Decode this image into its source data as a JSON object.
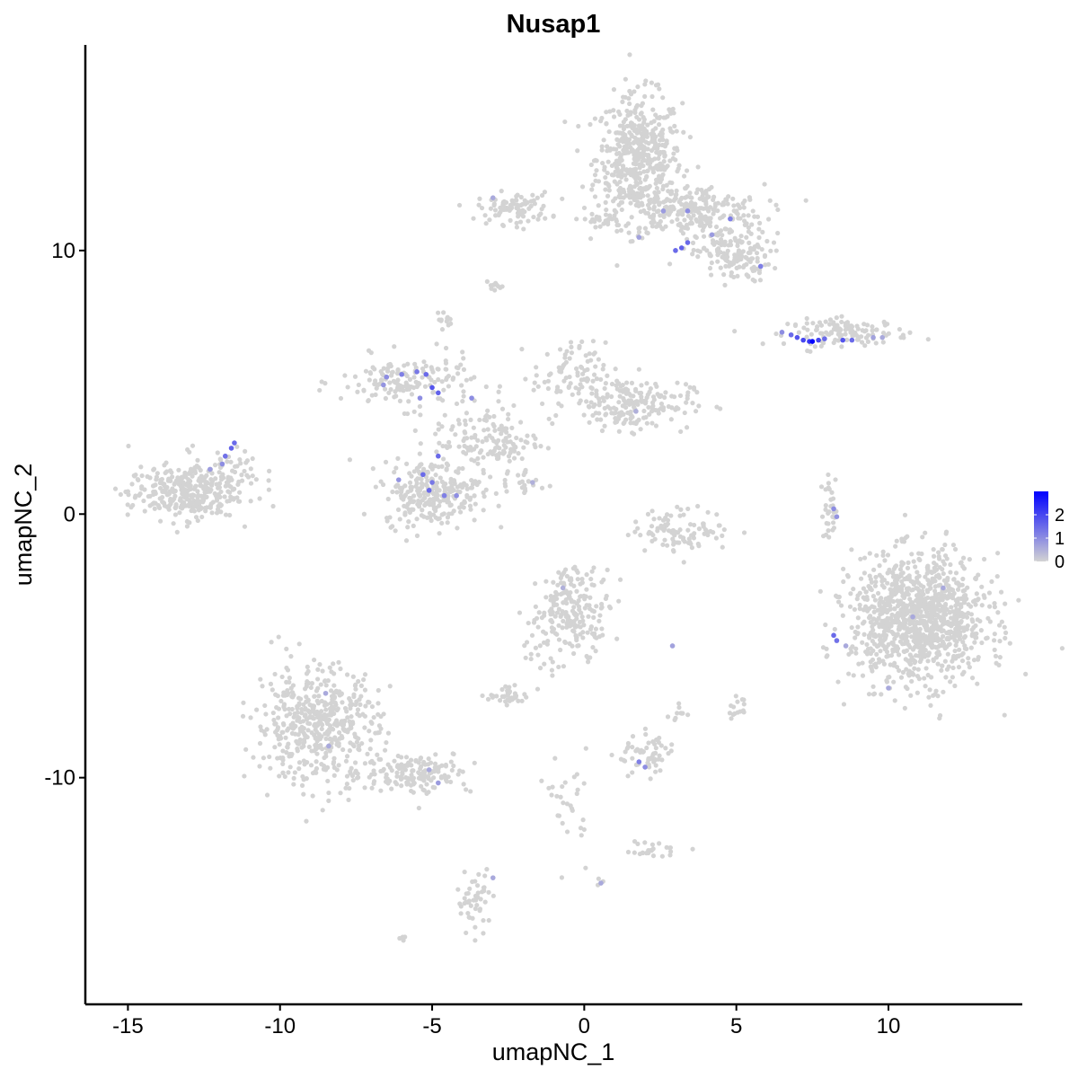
{
  "chart_data": {
    "type": "scatter",
    "title": "Nusap1",
    "xlabel": "umapNC_1",
    "ylabel": "umapNC_2",
    "xlim": [
      -16.4,
      14.4
    ],
    "ylim": [
      -18.6,
      17.8
    ],
    "x_ticks": [
      -15,
      -10,
      -5,
      0,
      5,
      10
    ],
    "y_ticks": [
      -10,
      0,
      10
    ],
    "grid": false,
    "legend": {
      "position": "right",
      "ticks": [
        0,
        1,
        2
      ],
      "min": 0,
      "max": 3.0
    },
    "colors": {
      "low": "#D3D3D3",
      "high": "#0000FF"
    },
    "background_clusters": [
      {
        "center": [
          1.8,
          13.5
        ],
        "spread": [
          0.7,
          1.2
        ],
        "n": 500
      },
      {
        "center": [
          3.5,
          11.5
        ],
        "spread": [
          1.2,
          0.5
        ],
        "n": 250
      },
      {
        "center": [
          4.9,
          9.8
        ],
        "spread": [
          0.6,
          0.5
        ],
        "n": 150
      },
      {
        "center": [
          -2.3,
          11.6
        ],
        "spread": [
          0.6,
          0.3
        ],
        "n": 90
      },
      {
        "center": [
          0.6,
          11.2
        ],
        "spread": [
          0.5,
          0.1
        ],
        "n": 20
      },
      {
        "center": [
          -2.95,
          8.6
        ],
        "spread": [
          0.15,
          0.1
        ],
        "n": 10
      },
      {
        "center": [
          -4.6,
          7.4
        ],
        "spread": [
          0.12,
          0.15
        ],
        "n": 12
      },
      {
        "center": [
          8.7,
          6.9
        ],
        "spread": [
          1.0,
          0.25
        ],
        "n": 120
      },
      {
        "center": [
          -5.8,
          5.0
        ],
        "spread": [
          1.1,
          0.5
        ],
        "n": 160
      },
      {
        "center": [
          1.5,
          4.2
        ],
        "spread": [
          1.0,
          0.5
        ],
        "n": 200
      },
      {
        "center": [
          -0.5,
          5.3
        ],
        "spread": [
          0.6,
          0.6
        ],
        "n": 80
      },
      {
        "center": [
          -3.2,
          2.8
        ],
        "spread": [
          0.9,
          0.7
        ],
        "n": 150
      },
      {
        "center": [
          -5.0,
          0.8
        ],
        "spread": [
          0.8,
          0.6
        ],
        "n": 260
      },
      {
        "center": [
          -13.2,
          0.8
        ],
        "spread": [
          0.9,
          0.5
        ],
        "n": 300
      },
      {
        "center": [
          -11.8,
          1.6
        ],
        "spread": [
          0.6,
          0.4
        ],
        "n": 60
      },
      {
        "center": [
          -2.0,
          1.2
        ],
        "spread": [
          0.4,
          0.3
        ],
        "n": 20
      },
      {
        "center": [
          3.2,
          -0.6
        ],
        "spread": [
          0.8,
          0.4
        ],
        "n": 100
      },
      {
        "center": [
          8.1,
          0.2
        ],
        "spread": [
          0.15,
          0.6
        ],
        "n": 30
      },
      {
        "center": [
          11.0,
          -4.0
        ],
        "spread": [
          1.1,
          1.2
        ],
        "n": 1100
      },
      {
        "center": [
          -0.3,
          -3.6
        ],
        "spread": [
          0.6,
          0.8
        ],
        "n": 200
      },
      {
        "center": [
          -8.8,
          -8.0
        ],
        "spread": [
          1.0,
          1.1
        ],
        "n": 500
      },
      {
        "center": [
          -5.5,
          -9.8
        ],
        "spread": [
          0.9,
          0.4
        ],
        "n": 150
      },
      {
        "center": [
          -2.4,
          -6.9
        ],
        "spread": [
          0.35,
          0.15
        ],
        "n": 40
      },
      {
        "center": [
          -1.5,
          -5.0
        ],
        "spread": [
          0.3,
          0.8
        ],
        "n": 25
      },
      {
        "center": [
          2.1,
          -9.2
        ],
        "spread": [
          0.5,
          0.4
        ],
        "n": 60
      },
      {
        "center": [
          -0.5,
          -11.0
        ],
        "spread": [
          0.3,
          1.0
        ],
        "n": 30
      },
      {
        "center": [
          2.2,
          -12.7
        ],
        "spread": [
          0.5,
          0.15
        ],
        "n": 25
      },
      {
        "center": [
          -3.6,
          -14.7
        ],
        "spread": [
          0.3,
          0.6
        ],
        "n": 50
      },
      {
        "center": [
          5.0,
          -7.4
        ],
        "spread": [
          0.15,
          0.2
        ],
        "n": 15
      },
      {
        "center": [
          3.2,
          -7.6
        ],
        "spread": [
          0.2,
          0.2
        ],
        "n": 10
      },
      {
        "center": [
          -6.0,
          -16.1
        ],
        "spread": [
          0.1,
          0.05
        ],
        "n": 4
      },
      {
        "center": [
          0.5,
          -14.0
        ],
        "spread": [
          0.08,
          0.08
        ],
        "n": 3
      }
    ],
    "expressed_points": [
      [
        6.5,
        6.9,
        1.0
      ],
      [
        6.8,
        6.8,
        1.5
      ],
      [
        7.0,
        6.7,
        1.8
      ],
      [
        7.2,
        6.6,
        2.0
      ],
      [
        7.4,
        6.55,
        2.2
      ],
      [
        7.5,
        6.55,
        3.0
      ],
      [
        7.7,
        6.6,
        2.0
      ],
      [
        7.9,
        6.65,
        1.5
      ],
      [
        8.5,
        6.6,
        1.8
      ],
      [
        8.8,
        6.6,
        1.5
      ],
      [
        9.5,
        6.7,
        0.7
      ],
      [
        9.8,
        6.7,
        0.6
      ],
      [
        3.0,
        10.0,
        1.5
      ],
      [
        3.2,
        10.1,
        1.6
      ],
      [
        3.4,
        10.3,
        1.5
      ],
      [
        2.6,
        11.5,
        0.8
      ],
      [
        3.4,
        11.5,
        1.0
      ],
      [
        4.8,
        11.2,
        1.2
      ],
      [
        5.8,
        9.4,
        1.2
      ],
      [
        4.2,
        10.6,
        0.8
      ],
      [
        -3.0,
        12.0,
        0.6
      ],
      [
        1.8,
        10.5,
        0.7
      ],
      [
        -6.5,
        5.2,
        1.0
      ],
      [
        -6.0,
        5.3,
        1.2
      ],
      [
        -5.5,
        5.4,
        1.3
      ],
      [
        -5.2,
        5.3,
        1.5
      ],
      [
        -5.0,
        4.8,
        1.8
      ],
      [
        -4.8,
        4.6,
        1.6
      ],
      [
        -6.6,
        4.9,
        0.9
      ],
      [
        -5.4,
        4.4,
        1.0
      ],
      [
        -3.7,
        4.4,
        1.0
      ],
      [
        -4.8,
        2.2,
        1.5
      ],
      [
        -5.0,
        1.2,
        1.3
      ],
      [
        -5.3,
        1.5,
        1.5
      ],
      [
        -5.1,
        0.9,
        1.5
      ],
      [
        -4.6,
        0.7,
        1.2
      ],
      [
        -4.2,
        0.7,
        1.0
      ],
      [
        -6.1,
        1.3,
        0.9
      ],
      [
        -11.5,
        2.7,
        1.5
      ],
      [
        -11.6,
        2.5,
        1.6
      ],
      [
        -11.8,
        2.2,
        1.4
      ],
      [
        -11.9,
        1.9,
        1.0
      ],
      [
        -12.3,
        1.7,
        0.8
      ],
      [
        8.2,
        0.2,
        1.0
      ],
      [
        8.3,
        -0.1,
        0.9
      ],
      [
        8.2,
        -4.6,
        1.5
      ],
      [
        8.3,
        -4.8,
        1.4
      ],
      [
        11.8,
        -2.8,
        0.6
      ],
      [
        10.8,
        -3.9,
        0.6
      ],
      [
        10.0,
        -6.6,
        0.6
      ],
      [
        8.6,
        -5.0,
        0.6
      ],
      [
        1.8,
        -9.4,
        1.2
      ],
      [
        2.0,
        -9.6,
        1.0
      ],
      [
        2.9,
        -5.0,
        0.7
      ],
      [
        -0.7,
        -2.8,
        0.5
      ],
      [
        -8.5,
        -6.8,
        0.6
      ],
      [
        -8.4,
        -8.8,
        0.6
      ],
      [
        -5.1,
        -9.7,
        0.6
      ],
      [
        -4.8,
        -10.2,
        0.8
      ],
      [
        -1.7,
        1.2,
        0.5
      ],
      [
        1.7,
        3.9,
        0.5
      ],
      [
        -3.0,
        -13.8,
        0.6
      ],
      [
        0.55,
        -14.0,
        0.6
      ]
    ]
  }
}
